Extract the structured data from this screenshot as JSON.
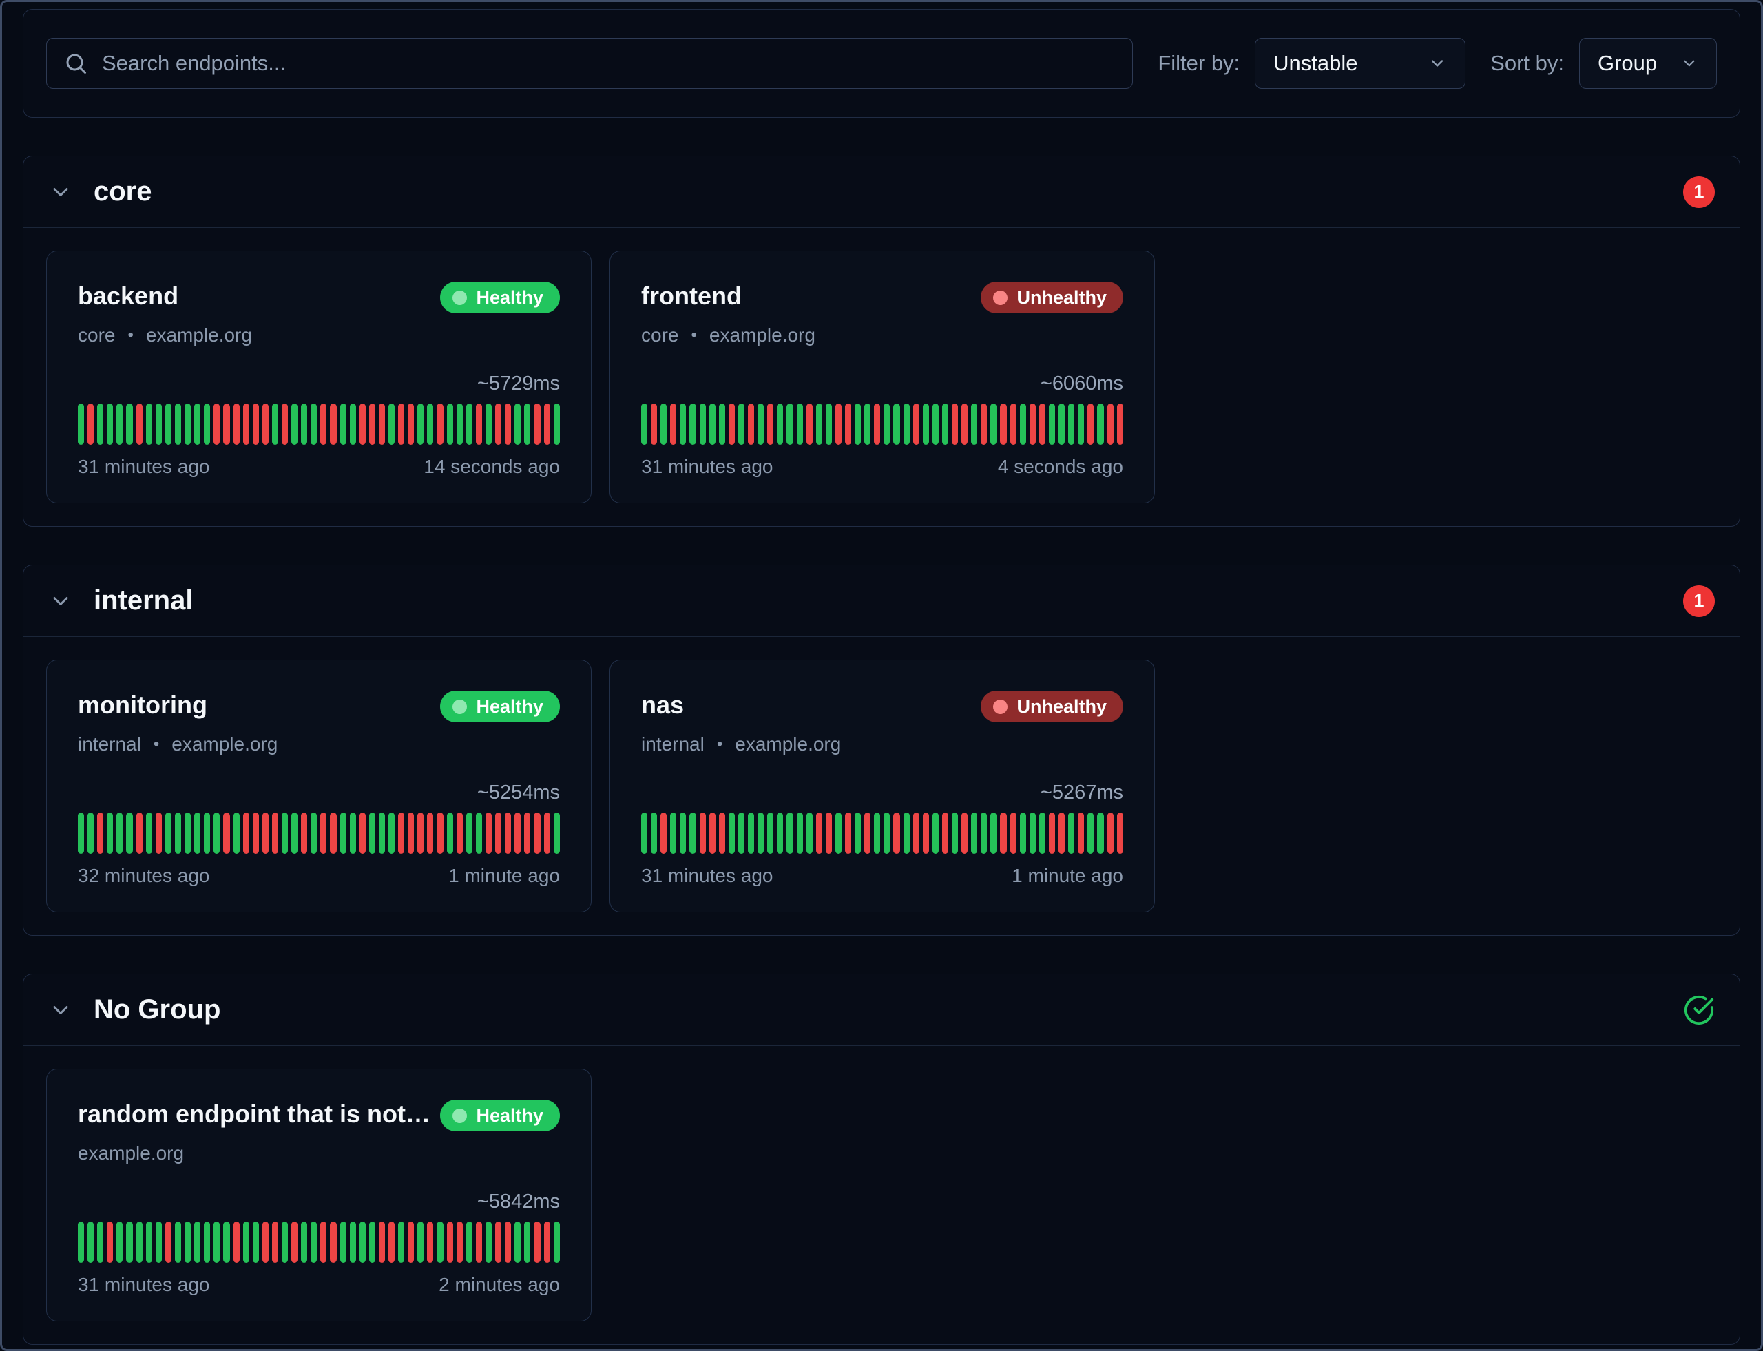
{
  "colors": {
    "background": "#060b15",
    "panel_border": "#202c44",
    "accent_green": "#22c55e",
    "accent_red": "#ee4545",
    "count_badge_red": "#ee3434",
    "unhealthy_badge_bg": "#8f2b2b",
    "text_primary": "#f4f7fa",
    "text_secondary": "#8b99ad"
  },
  "toolbar": {
    "search_placeholder": "Search endpoints...",
    "filter_label": "Filter by:",
    "filter_value": "Unstable",
    "sort_label": "Sort by:",
    "sort_value": "Group"
  },
  "groups": [
    {
      "name": "core",
      "badge": {
        "type": "count",
        "value": "1"
      },
      "endpoints": [
        {
          "name": "backend",
          "status": "Healthy",
          "group": "core",
          "host": "example.org",
          "response_time": "~5729ms",
          "oldest": "31 minutes ago",
          "newest": "14 seconds ago",
          "history": "GRGGGGRGGGGGGGRRRRRRGRGGGRRGGRRRGRRGGRGGGRGRRGGRRG"
        },
        {
          "name": "frontend",
          "status": "Unhealthy",
          "group": "core",
          "host": "example.org",
          "response_time": "~6060ms",
          "oldest": "31 minutes ago",
          "newest": "4 seconds ago",
          "history": "GRGRGGGGGRGRGRGGGRGGRRGGRGGGRGGGRRGRGRRGRRGGGGRGRR"
        }
      ]
    },
    {
      "name": "internal",
      "badge": {
        "type": "count",
        "value": "1"
      },
      "endpoints": [
        {
          "name": "monitoring",
          "status": "Healthy",
          "group": "internal",
          "host": "example.org",
          "response_time": "~5254ms",
          "oldest": "32 minutes ago",
          "newest": "1 minute ago",
          "history": "GGRGGGRGRGGGGGGRGRRRRGGRGRRGGRGGGRRRRRGRGGRRRRRRRG"
        },
        {
          "name": "nas",
          "status": "Unhealthy",
          "group": "internal",
          "host": "example.org",
          "response_time": "~5267ms",
          "oldest": "31 minutes ago",
          "newest": "1 minute ago",
          "history": "GGRGGGRRRGGGGGGGGGRRGRGRGGRGRRGRGRGGGRRGGGRRGRGGRR"
        }
      ]
    },
    {
      "name": "No Group",
      "badge": {
        "type": "ok"
      },
      "endpoints": [
        {
          "name": "random endpoint that is not part...",
          "status": "Healthy",
          "group": "",
          "host": "example.org",
          "response_time": "~5842ms",
          "oldest": "31 minutes ago",
          "newest": "2 minutes ago",
          "history": "GGGRGGGGGRGGGGGGRGGRRGRGGRRGGGGRRGRGRGRRGRGRRGGRRG"
        }
      ]
    }
  ]
}
